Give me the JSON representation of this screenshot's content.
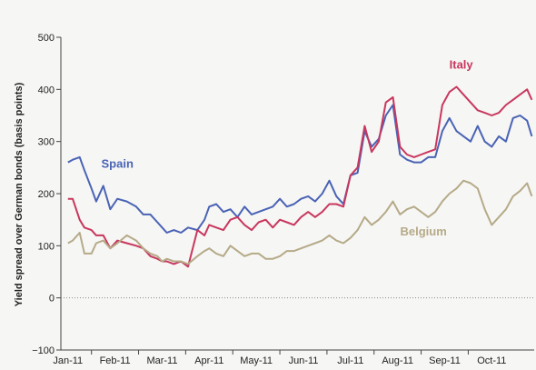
{
  "chart_data": {
    "type": "line",
    "title": "",
    "xlabel": "",
    "ylabel": "Yield spread over German bonds (basis points)",
    "ylim": [
      -100,
      500
    ],
    "yticks": [
      -100,
      0,
      100,
      200,
      300,
      400,
      500
    ],
    "grid": false,
    "legend": "inline labels",
    "categories": [
      "Jan-11",
      "Feb-11",
      "Mar-11",
      "Apr-11",
      "May-11",
      "Jun-11",
      "Jul-11",
      "Aug-11",
      "Sep-11",
      "Oct-11"
    ],
    "x": [
      0,
      0.1,
      0.25,
      0.35,
      0.5,
      0.6,
      0.75,
      0.9,
      1.05,
      1.25,
      1.45,
      1.6,
      1.75,
      1.9,
      2.0,
      2.1,
      2.25,
      2.4,
      2.55,
      2.75,
      2.9,
      3.0,
      3.15,
      3.3,
      3.45,
      3.6,
      3.75,
      3.9,
      4.05,
      4.2,
      4.35,
      4.5,
      4.65,
      4.8,
      4.95,
      5.1,
      5.25,
      5.4,
      5.55,
      5.7,
      5.85,
      6.0,
      6.15,
      6.3,
      6.45,
      6.6,
      6.75,
      6.9,
      7.05,
      7.2,
      7.35,
      7.5,
      7.65,
      7.8,
      7.95,
      8.1,
      8.25,
      8.4,
      8.55,
      8.7,
      8.85,
      9.0,
      9.15,
      9.3,
      9.45,
      9.6,
      9.75,
      9.85
    ],
    "series": [
      {
        "name": "Spain",
        "color": "#4a63b5",
        "values": [
          260,
          265,
          270,
          245,
          210,
          185,
          215,
          170,
          190,
          185,
          175,
          160,
          160,
          145,
          135,
          125,
          130,
          125,
          135,
          130,
          150,
          175,
          180,
          165,
          170,
          155,
          175,
          160,
          165,
          170,
          175,
          190,
          175,
          180,
          190,
          195,
          185,
          200,
          225,
          195,
          180,
          235,
          240,
          320,
          290,
          305,
          350,
          370,
          275,
          265,
          260,
          260,
          270,
          270,
          320,
          345,
          320,
          310,
          300,
          330,
          300,
          290,
          310,
          300,
          345,
          350,
          340,
          310
        ]
      },
      {
        "name": "Italy",
        "color": "#c8375e",
        "values": [
          190,
          190,
          150,
          135,
          130,
          120,
          120,
          95,
          110,
          105,
          100,
          95,
          80,
          75,
          70,
          70,
          65,
          70,
          60,
          130,
          120,
          140,
          135,
          130,
          150,
          155,
          140,
          130,
          145,
          150,
          135,
          150,
          145,
          140,
          155,
          165,
          155,
          165,
          180,
          180,
          175,
          235,
          250,
          330,
          280,
          300,
          375,
          385,
          290,
          275,
          270,
          275,
          280,
          285,
          370,
          395,
          405,
          390,
          375,
          360,
          355,
          350,
          355,
          370,
          380,
          390,
          400,
          380
        ]
      },
      {
        "name": "Belgium",
        "color": "#b5aa88",
        "values": [
          105,
          110,
          125,
          85,
          85,
          105,
          110,
          95,
          105,
          120,
          110,
          95,
          85,
          80,
          70,
          75,
          70,
          70,
          65,
          80,
          90,
          95,
          85,
          80,
          100,
          90,
          80,
          85,
          85,
          75,
          75,
          80,
          90,
          90,
          95,
          100,
          105,
          110,
          120,
          110,
          105,
          115,
          130,
          155,
          140,
          150,
          165,
          185,
          160,
          170,
          175,
          165,
          155,
          165,
          185,
          200,
          210,
          225,
          220,
          210,
          170,
          140,
          155,
          170,
          195,
          205,
          220,
          195
        ]
      }
    ],
    "series_labels": [
      {
        "text": "Spain",
        "series": 0,
        "x": 1.05,
        "y": 250
      },
      {
        "text": "Italy",
        "series": 1,
        "x": 8.35,
        "y": 440
      },
      {
        "text": "Belgium",
        "series": 2,
        "x": 7.55,
        "y": 120
      }
    ]
  }
}
